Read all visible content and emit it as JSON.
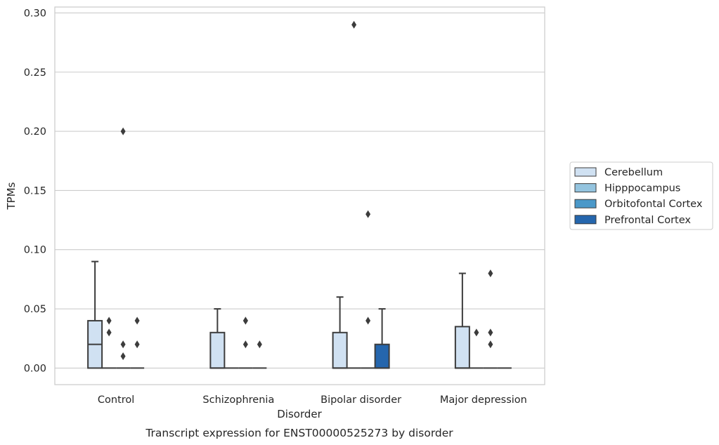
{
  "chart_data": {
    "type": "box",
    "caption": "Transcript expression for ENST00000525273 by disorder",
    "xlabel": "Disorder",
    "ylabel": "TPMs",
    "ylim": [
      -0.014,
      0.305
    ],
    "yticks": [
      0.0,
      0.05,
      0.1,
      0.15,
      0.2,
      0.25,
      0.3
    ],
    "ytick_labels": [
      "0.00",
      "0.05",
      "0.10",
      "0.15",
      "0.20",
      "0.25",
      "0.30"
    ],
    "grid": "horizontal",
    "legend_placement": "right",
    "categories": [
      "Control",
      "Schizophrenia",
      "Bipolar disorder",
      "Major depression"
    ],
    "series": [
      {
        "name": "Cerebellum",
        "color": "#d0e1f2",
        "boxes": [
          {
            "q1": 0.0,
            "median": 0.02,
            "q3": 0.04,
            "whislo": 0.0,
            "whishi": 0.09,
            "fliers": []
          },
          {
            "q1": 0.0,
            "median": 0.0,
            "q3": 0.03,
            "whislo": 0.0,
            "whishi": 0.05,
            "fliers": []
          },
          {
            "q1": 0.0,
            "median": 0.0,
            "q3": 0.03,
            "whislo": 0.0,
            "whishi": 0.06,
            "fliers": []
          },
          {
            "q1": 0.0,
            "median": 0.0,
            "q3": 0.035,
            "whislo": 0.0,
            "whishi": 0.08,
            "fliers": []
          }
        ]
      },
      {
        "name": "Hipppocampus",
        "color": "#94c4df",
        "boxes": [
          {
            "q1": 0.0,
            "median": 0.0,
            "q3": 0.0,
            "whislo": 0.0,
            "whishi": 0.0,
            "fliers": [
              0.04,
              0.03
            ]
          },
          {
            "q1": 0.0,
            "median": 0.0,
            "q3": 0.0,
            "whislo": 0.0,
            "whishi": 0.0,
            "fliers": []
          },
          {
            "q1": 0.0,
            "median": 0.0,
            "q3": 0.0,
            "whislo": 0.0,
            "whishi": 0.0,
            "fliers": [
              0.29
            ]
          },
          {
            "q1": 0.0,
            "median": 0.0,
            "q3": 0.0,
            "whislo": 0.0,
            "whishi": 0.0,
            "fliers": [
              0.03
            ]
          }
        ]
      },
      {
        "name": "Orbitofontal Cortex",
        "color": "#4a98c9",
        "boxes": [
          {
            "q1": 0.0,
            "median": 0.0,
            "q3": 0.0,
            "whislo": 0.0,
            "whishi": 0.0,
            "fliers": [
              0.2,
              0.02,
              0.01
            ]
          },
          {
            "q1": 0.0,
            "median": 0.0,
            "q3": 0.0,
            "whislo": 0.0,
            "whishi": 0.0,
            "fliers": [
              0.04,
              0.04,
              0.02
            ]
          },
          {
            "q1": 0.0,
            "median": 0.0,
            "q3": 0.0,
            "whislo": 0.0,
            "whishi": 0.0,
            "fliers": [
              0.13,
              0.04
            ]
          },
          {
            "q1": 0.0,
            "median": 0.0,
            "q3": 0.0,
            "whislo": 0.0,
            "whishi": 0.0,
            "fliers": [
              0.08,
              0.03,
              0.02
            ]
          }
        ]
      },
      {
        "name": "Prefrontal Cortex",
        "color": "#2566ad",
        "boxes": [
          {
            "q1": 0.0,
            "median": 0.0,
            "q3": 0.0,
            "whislo": 0.0,
            "whishi": 0.0,
            "fliers": [
              0.04,
              0.02
            ]
          },
          {
            "q1": 0.0,
            "median": 0.0,
            "q3": 0.0,
            "whislo": 0.0,
            "whishi": 0.0,
            "fliers": [
              0.02
            ]
          },
          {
            "q1": 0.0,
            "median": 0.0,
            "q3": 0.02,
            "whislo": 0.0,
            "whishi": 0.05,
            "fliers": []
          },
          {
            "q1": 0.0,
            "median": 0.0,
            "q3": 0.0,
            "whislo": 0.0,
            "whishi": 0.0,
            "fliers": []
          }
        ]
      }
    ]
  }
}
